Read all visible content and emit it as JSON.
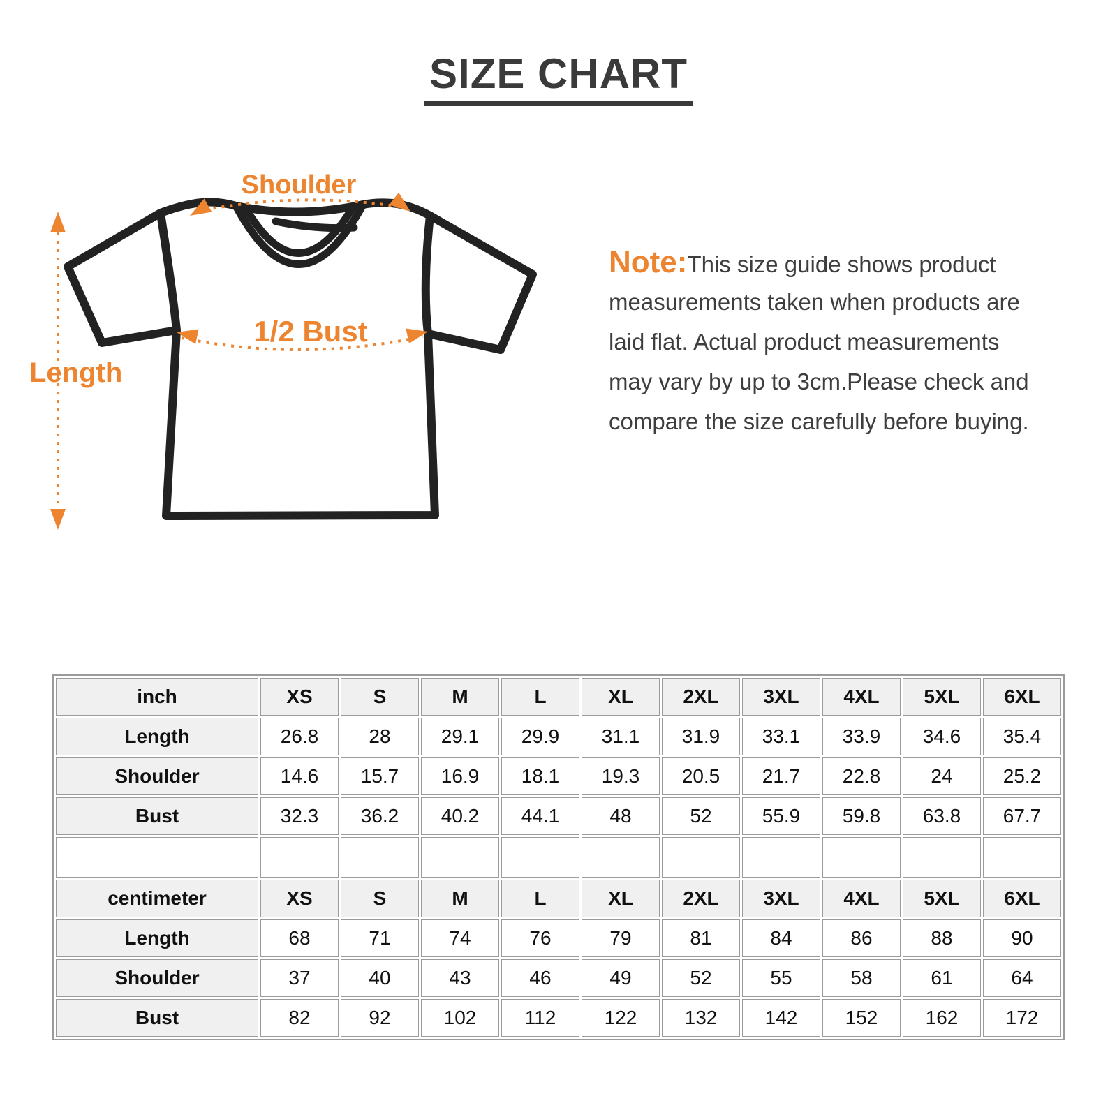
{
  "title": "SIZE CHART",
  "diagram": {
    "shoulder_label": "Shoulder",
    "half_bust_label": "1/2 Bust",
    "length_label": "Length"
  },
  "note": {
    "label": "Note:",
    "lines": [
      "This size guide shows product",
      "measurements taken when products are",
      "laid flat. Actual product measurements",
      "may vary by up to 3cm.Please check and",
      "compare the size carefully before buying."
    ]
  },
  "colors": {
    "accent_orange": "#ed8430",
    "ink": "#3a3a3a",
    "shirt_outline": "#222222",
    "table_border": "#9b9b9b",
    "table_header_bg": "#f0f0f0"
  },
  "table": {
    "sizes": [
      "XS",
      "S",
      "M",
      "L",
      "XL",
      "2XL",
      "3XL",
      "4XL",
      "5XL",
      "6XL"
    ],
    "sections": [
      {
        "unit_label": "inch",
        "rows": [
          {
            "label": "Length",
            "values": [
              "26.8",
              "28",
              "29.1",
              "29.9",
              "31.1",
              "31.9",
              "33.1",
              "33.9",
              "34.6",
              "35.4"
            ]
          },
          {
            "label": "Shoulder",
            "values": [
              "14.6",
              "15.7",
              "16.9",
              "18.1",
              "19.3",
              "20.5",
              "21.7",
              "22.8",
              "24",
              "25.2"
            ]
          },
          {
            "label": "Bust",
            "values": [
              "32.3",
              "36.2",
              "40.2",
              "44.1",
              "48",
              "52",
              "55.9",
              "59.8",
              "63.8",
              "67.7"
            ]
          }
        ]
      },
      {
        "unit_label": "centimeter",
        "rows": [
          {
            "label": "Length",
            "values": [
              "68",
              "71",
              "74",
              "76",
              "79",
              "81",
              "84",
              "86",
              "88",
              "90"
            ]
          },
          {
            "label": "Shoulder",
            "values": [
              "37",
              "40",
              "43",
              "46",
              "49",
              "52",
              "55",
              "58",
              "61",
              "64"
            ]
          },
          {
            "label": "Bust",
            "values": [
              "82",
              "92",
              "102",
              "112",
              "122",
              "132",
              "142",
              "152",
              "162",
              "172"
            ]
          }
        ]
      }
    ]
  }
}
